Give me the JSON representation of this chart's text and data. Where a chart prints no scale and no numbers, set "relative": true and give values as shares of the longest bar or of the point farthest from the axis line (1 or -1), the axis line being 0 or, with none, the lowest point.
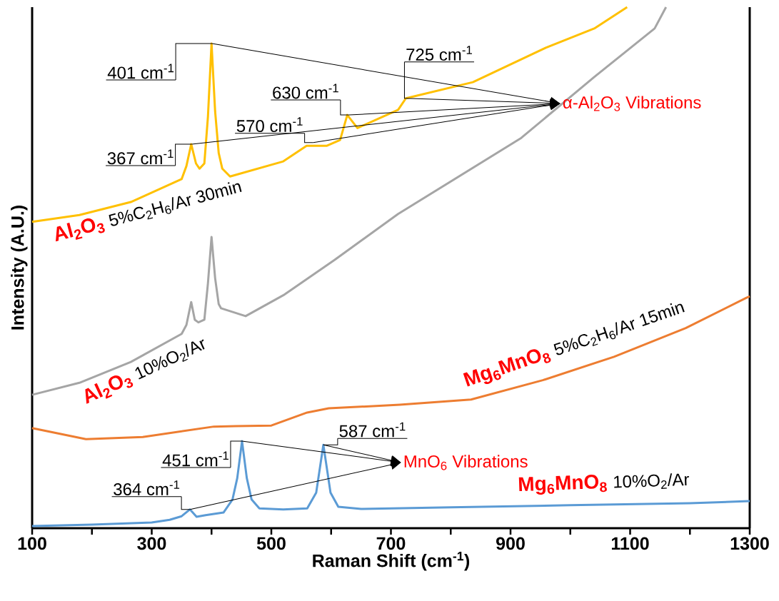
{
  "chart_data": {
    "type": "line",
    "relative": true,
    "xlabel": "Raman Shift (cm$^{-1}$)",
    "ylabel": "Intensity (A.U.)",
    "xlim": [
      100,
      1300
    ],
    "xticks": [
      100,
      {
        "value": 200,
        "label": null
      },
      300,
      {
        "value": 400,
        "label": null
      },
      500,
      {
        "value": 600,
        "label": null
      },
      700,
      {
        "value": 800,
        "label": null
      },
      900,
      {
        "value": 1000,
        "label": null
      },
      1100,
      {
        "value": 1200,
        "label": null
      },
      1300
    ],
    "series": [
      {
        "name": "Al$_{2}$O$_{3}$",
        "color": "#ffc000",
        "x": [
          100,
          179,
          265,
          350,
          358,
          366,
          374,
          380,
          388,
          394,
          400,
          406,
          412,
          418,
          431,
          520,
          559,
          593,
          615,
          627,
          644,
          712,
          725,
          837,
          959,
          1040,
          1095
        ],
        "values": [
          0.588,
          0.601,
          0.626,
          0.67,
          0.695,
          0.737,
          0.7,
          0.69,
          0.7,
          0.79,
          0.93,
          0.8,
          0.72,
          0.69,
          0.675,
          0.704,
          0.734,
          0.734,
          0.745,
          0.793,
          0.768,
          0.803,
          0.825,
          0.856,
          0.922,
          0.959,
          1.0
        ]
      },
      {
        "name": "Al$_{2}$O$_{3}$",
        "color": "#a5a5a5",
        "x": [
          100,
          179,
          265,
          350,
          358,
          366,
          372,
          378,
          388,
          394,
          400,
          406,
          412,
          416,
          457,
          520,
          606,
          712,
          918,
          1040,
          1141,
          1160
        ],
        "values": [
          0.256,
          0.279,
          0.319,
          0.373,
          0.39,
          0.434,
          0.4,
          0.395,
          0.4,
          0.47,
          0.559,
          0.48,
          0.43,
          0.422,
          0.407,
          0.447,
          0.515,
          0.603,
          0.749,
          0.866,
          0.959,
          1.0
        ]
      },
      {
        "name": "Mg$_{6}$MnO$_{8}$",
        "color": "#ed7d31",
        "x": [
          100,
          190,
          285,
          404,
          440,
          500,
          560,
          596,
          715,
          834,
          954,
          1073,
          1193,
          1294,
          1300
        ],
        "values": [
          0.192,
          0.171,
          0.175,
          0.195,
          0.196,
          0.197,
          0.222,
          0.23,
          0.237,
          0.247,
          0.284,
          0.329,
          0.384,
          0.442,
          0.445
        ]
      },
      {
        "name": "Mg$_{6}$MnO$_{8}$",
        "color": "#5b9bd5",
        "x": [
          100,
          200,
          300,
          330,
          350,
          364,
          375,
          390,
          420,
          435,
          443,
          451,
          459,
          467,
          480,
          520,
          560,
          575,
          587,
          599,
          612,
          650,
          800,
          1000,
          1200,
          1300
        ],
        "values": [
          0.004,
          0.007,
          0.011,
          0.016,
          0.023,
          0.036,
          0.022,
          0.025,
          0.03,
          0.055,
          0.096,
          0.167,
          0.096,
          0.055,
          0.038,
          0.036,
          0.038,
          0.068,
          0.16,
          0.068,
          0.041,
          0.037,
          0.04,
          0.044,
          0.048,
          0.052
        ]
      }
    ],
    "annotations": [
      "5%C$_{2}$H$_{6}$/Ar 30min",
      "10%O$_{2}$/Ar",
      "5%C$_{2}$H$_{6}$/Ar 15min",
      "10%O$_{2}$/Ar",
      {
        "text": "367 cm$^{-1}$",
        "x": 367,
        "y": 0.737
      },
      {
        "text": "401 cm$^{-1}$",
        "x": 401,
        "y": 0.93
      },
      {
        "text": "570 cm$^{-1}$",
        "x": 570,
        "y": 0.74
      },
      {
        "text": "630 cm$^{-1}$",
        "x": 630,
        "y": 0.793
      },
      {
        "text": "725 cm$^{-1}$",
        "x": 725,
        "y": 0.825
      },
      "α-Al$_{2}$O$_{3}$ Vibrations",
      {
        "text": "364 cm$^{-1}$",
        "x": 364,
        "y": 0.036
      },
      {
        "text": "451 cm$^{-1}$",
        "x": 451,
        "y": 0.167
      },
      {
        "text": "587 cm$^{-1}$",
        "x": 587,
        "y": 0.16
      },
      "MnO$_{6}$ Vibrations"
    ]
  }
}
